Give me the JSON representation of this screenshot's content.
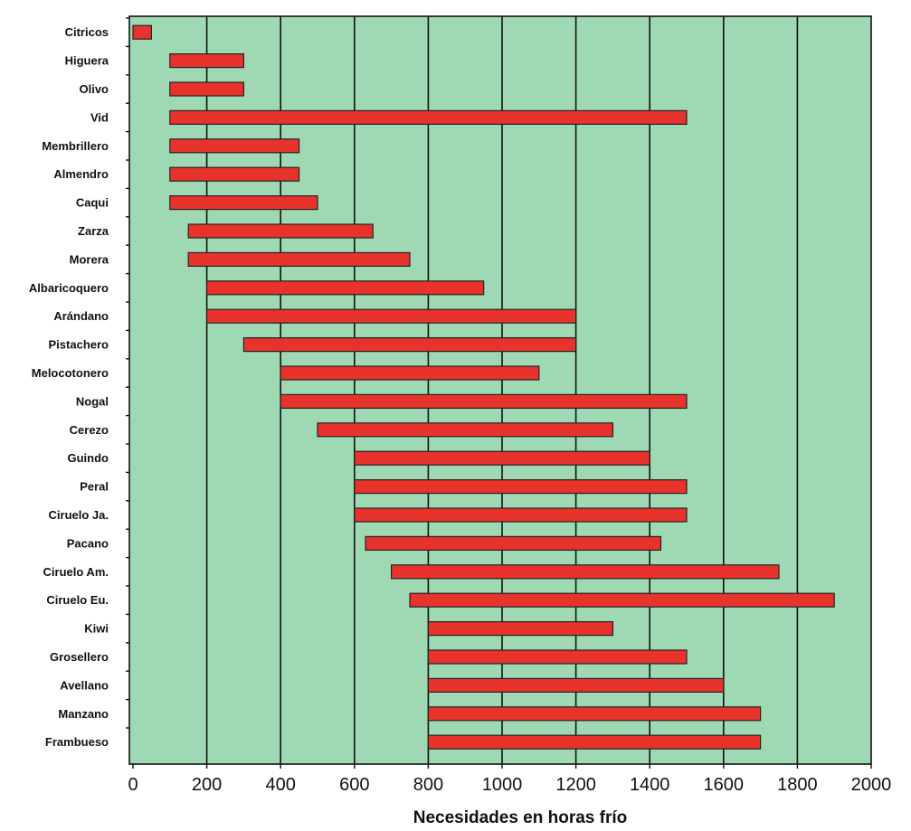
{
  "chart_data": {
    "type": "bar",
    "orientation": "horizontal-range",
    "title": "",
    "xlabel": "Necesidades en horas frío",
    "ylabel": "",
    "xlim": [
      0,
      2000
    ],
    "xticks": [
      0,
      200,
      400,
      600,
      800,
      1000,
      1200,
      1400,
      1600,
      1800,
      2000
    ],
    "grid": true,
    "colors": {
      "plot_background": "#9fd9b3",
      "bar": "#e8322c"
    },
    "categories": [
      "Citricos",
      "Higuera",
      "Olivo",
      "Vid",
      "Membrillero",
      "Almendro",
      "Caqui",
      "Zarza",
      "Morera",
      "Albaricoquero",
      "Arándano",
      "Pistachero",
      "Melocotonero",
      "Nogal",
      "Cerezo",
      "Guindo",
      "Peral",
      "Ciruelo Ja.",
      "Pacano",
      "Ciruelo Am.",
      "Ciruelo Eu.",
      "Kiwi",
      "Grosellero",
      "Avellano",
      "Manzano",
      "Frambueso"
    ],
    "ranges": [
      [
        0,
        50
      ],
      [
        100,
        300
      ],
      [
        100,
        300
      ],
      [
        100,
        1500
      ],
      [
        100,
        450
      ],
      [
        100,
        450
      ],
      [
        100,
        500
      ],
      [
        150,
        650
      ],
      [
        150,
        750
      ],
      [
        200,
        950
      ],
      [
        200,
        1200
      ],
      [
        300,
        1200
      ],
      [
        400,
        1100
      ],
      [
        400,
        1500
      ],
      [
        500,
        1300
      ],
      [
        600,
        1400
      ],
      [
        600,
        1500
      ],
      [
        600,
        1500
      ],
      [
        630,
        1430
      ],
      [
        700,
        1750
      ],
      [
        750,
        1900
      ],
      [
        800,
        1300
      ],
      [
        800,
        1500
      ],
      [
        800,
        1600
      ],
      [
        800,
        1700
      ],
      [
        800,
        1700
      ]
    ]
  }
}
